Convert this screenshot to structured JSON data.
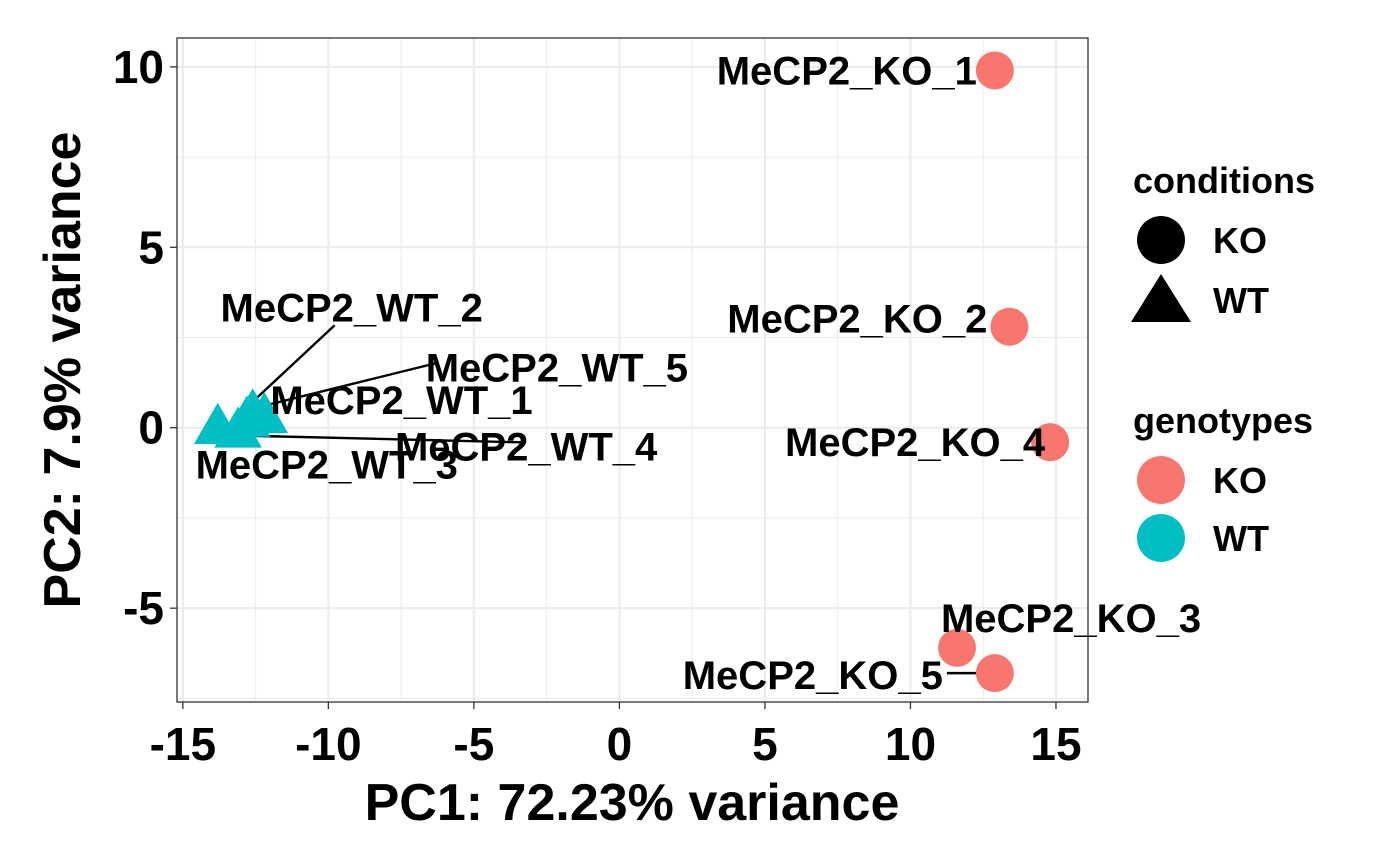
{
  "chart_data": {
    "type": "scatter",
    "xlabel": "PC1: 72.23% variance",
    "ylabel": "PC2: 7.9% variance",
    "xlim": [
      -15.2,
      16.1
    ],
    "ylim": [
      -7.6,
      10.8
    ],
    "xticks": [
      -15,
      -10,
      -5,
      0,
      5,
      10,
      15
    ],
    "xtick_labels": [
      "-15",
      "-10",
      "-5",
      "0",
      "5",
      "10",
      "15"
    ],
    "yticks": [
      -5,
      0,
      5,
      10
    ],
    "ytick_labels": [
      "-5",
      "0",
      "5",
      "10"
    ],
    "grid": true,
    "points": [
      {
        "label": "MeCP2_KO_1",
        "x": 12.9,
        "y": 9.9,
        "condition": "KO",
        "genotype": "KO"
      },
      {
        "label": "MeCP2_KO_2",
        "x": 13.4,
        "y": 2.8,
        "condition": "KO",
        "genotype": "KO"
      },
      {
        "label": "MeCP2_KO_3",
        "x": 11.6,
        "y": -6.1,
        "condition": "KO",
        "genotype": "KO"
      },
      {
        "label": "MeCP2_KO_4",
        "x": 14.8,
        "y": -0.4,
        "condition": "KO",
        "genotype": "KO"
      },
      {
        "label": "MeCP2_KO_5",
        "x": 12.9,
        "y": -6.8,
        "condition": "KO",
        "genotype": "KO"
      },
      {
        "label": "MeCP2_WT_1",
        "x": -12.2,
        "y": 0.3,
        "condition": "WT",
        "genotype": "WT"
      },
      {
        "label": "MeCP2_WT_2",
        "x": -12.6,
        "y": 0.4,
        "condition": "WT",
        "genotype": "WT"
      },
      {
        "label": "MeCP2_WT_3",
        "x": -13.8,
        "y": 0.0,
        "condition": "WT",
        "genotype": "WT"
      },
      {
        "label": "MeCP2_WT_4",
        "x": -13.1,
        "y": -0.1,
        "condition": "WT",
        "genotype": "WT"
      },
      {
        "label": "MeCP2_WT_5",
        "x": -12.8,
        "y": 0.2,
        "condition": "WT",
        "genotype": "WT"
      }
    ],
    "legends": [
      {
        "title": "conditions",
        "kind": "shape",
        "items": [
          {
            "label": "KO",
            "shape": "circle"
          },
          {
            "label": "WT",
            "shape": "triangle"
          }
        ]
      },
      {
        "title": "genotypes",
        "kind": "color",
        "items": [
          {
            "label": "KO",
            "color": "#F8766D"
          },
          {
            "label": "WT",
            "color": "#00BFC4"
          }
        ]
      }
    ],
    "legend_position": "right",
    "colors": {
      "KO": "#F8766D",
      "WT": "#00BFC4",
      "grid": "#EBEBEB",
      "panel_border": "#333333"
    }
  }
}
